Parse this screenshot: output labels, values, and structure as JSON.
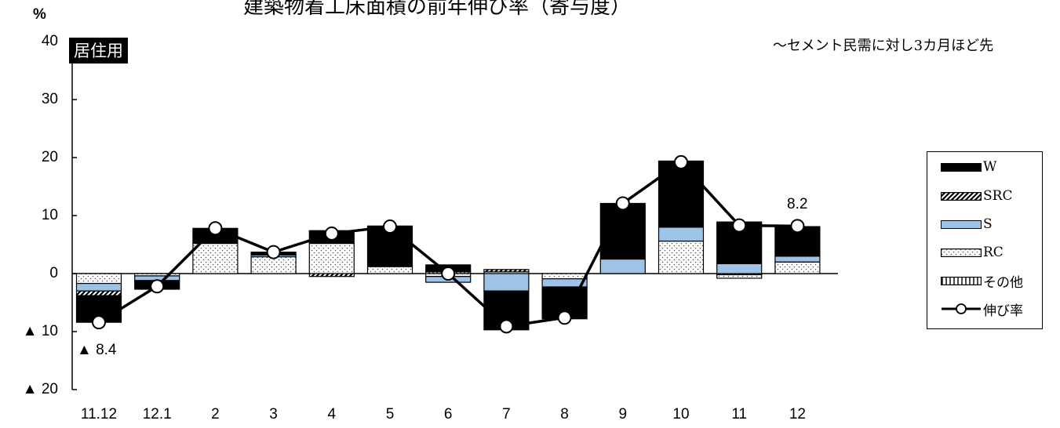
{
  "chart_data": {
    "type": "bar",
    "stacked": true,
    "title": "建築物着工床面積の前年伸び率（寄与度）",
    "subtitle": "～セメント民需に対し3カ月ほど先",
    "panel_label": "居住用",
    "ylabel": "%",
    "ylim": [
      -20,
      40
    ],
    "yticks": [
      40,
      30,
      20,
      10,
      0,
      -10,
      -20
    ],
    "ytick_labels": [
      "40",
      "30",
      "20",
      "10",
      "0",
      "▲ 10",
      "▲ 20"
    ],
    "categories": [
      "11.12",
      "12.1",
      "2",
      "3",
      "4",
      "5",
      "6",
      "7",
      "8",
      "9",
      "10",
      "11",
      "12"
    ],
    "series": [
      {
        "name": "W",
        "color": "#000000",
        "pattern": "solid",
        "values": [
          -4.6,
          -1.5,
          2.6,
          0.4,
          2.2,
          7.0,
          1.2,
          -6.7,
          -5.5,
          9.6,
          11.4,
          7.2,
          5.1
        ]
      },
      {
        "name": "SRC",
        "color": "#000000",
        "pattern": "hatch",
        "values": [
          -0.8,
          0.0,
          0.0,
          0.1,
          -0.5,
          0.0,
          0.0,
          0.4,
          0.0,
          0.0,
          0.0,
          0.0,
          0.0
        ]
      },
      {
        "name": "S",
        "color": "#9dc3e6",
        "pattern": "solid",
        "values": [
          -1.3,
          -0.8,
          0.0,
          0.3,
          0.0,
          0.0,
          -1.0,
          -3.0,
          -1.4,
          2.5,
          2.4,
          1.7,
          1.0
        ]
      },
      {
        "name": "RC",
        "color": "#ffffff",
        "pattern": "dots",
        "values": [
          -1.7,
          -0.4,
          5.2,
          2.9,
          5.2,
          1.2,
          -0.5,
          0.3,
          -0.9,
          0.0,
          5.6,
          -0.6,
          2.0
        ]
      },
      {
        "name": "その他",
        "color": "#ffffff",
        "pattern": "vlines",
        "values": [
          0.0,
          0.0,
          0.0,
          0.0,
          0.0,
          0.0,
          0.3,
          0.0,
          0.0,
          0.0,
          0.0,
          -0.2,
          0.0
        ]
      }
    ],
    "line_series": {
      "name": "伸び率",
      "values": [
        -8.4,
        -2.2,
        7.8,
        3.7,
        6.9,
        8.1,
        0.0,
        -9.1,
        -7.6,
        12.1,
        19.2,
        8.3,
        8.2
      ]
    },
    "data_labels": {
      "first": "▲ 8.4",
      "last": "8.2"
    },
    "legend": {
      "position": "right"
    },
    "grid": false
  }
}
